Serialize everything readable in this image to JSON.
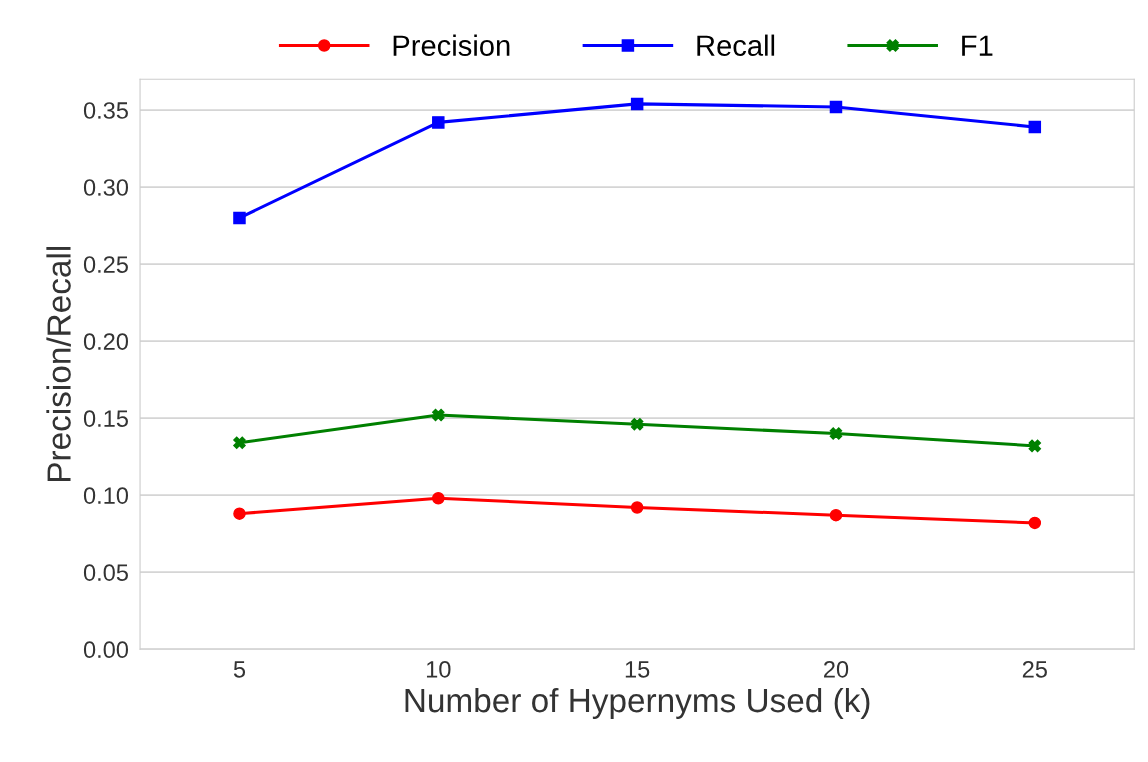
{
  "chart_data": {
    "type": "line",
    "xlabel": "Number of Hypernyms Used (k)",
    "ylabel": "Precision/Recall",
    "x": [
      5,
      10,
      15,
      20,
      25
    ],
    "series": [
      {
        "name": "Precision",
        "color": "#ff0000",
        "marker": "circle",
        "values": [
          0.088,
          0.098,
          0.092,
          0.087,
          0.082
        ]
      },
      {
        "name": "Recall",
        "color": "#0000ff",
        "marker": "square",
        "values": [
          0.28,
          0.342,
          0.354,
          0.352,
          0.339
        ]
      },
      {
        "name": "F1",
        "color": "#008000",
        "marker": "cross",
        "values": [
          0.134,
          0.152,
          0.146,
          0.14,
          0.132
        ]
      }
    ],
    "xlim": [
      2.5,
      27.5
    ],
    "xticks": [
      5,
      10,
      15,
      20,
      25
    ],
    "ylim": [
      0,
      0.37
    ],
    "yticks": [
      {
        "value": 0,
        "label": "0.00"
      },
      {
        "value": 0.05,
        "label": "0.05"
      },
      {
        "value": 0.1,
        "label": "0.10"
      },
      {
        "value": 0.15,
        "label": "0.15"
      },
      {
        "value": 0.2,
        "label": "0.20"
      },
      {
        "value": 0.25,
        "label": "0.25"
      },
      {
        "value": 0.3,
        "label": "0.30"
      },
      {
        "value": 0.35,
        "label": "0.35"
      }
    ],
    "grid": "y",
    "legend": "top",
    "line_style": "solid"
  }
}
